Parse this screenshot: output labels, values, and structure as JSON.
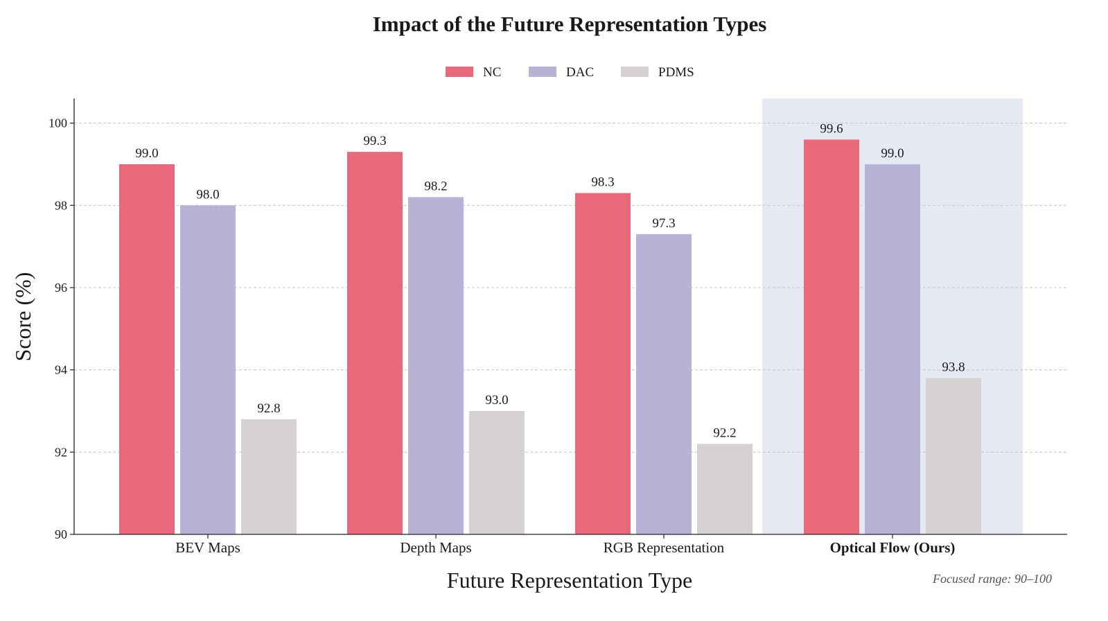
{
  "chart_data": {
    "type": "bar",
    "title": "Impact of the Future Representation Types",
    "xlabel": "Future Representation Type",
    "ylabel": "Score (%)",
    "ylim": [
      90,
      100.6
    ],
    "yticks": [
      90,
      92,
      94,
      96,
      98,
      100
    ],
    "grid": true,
    "legend_placement": "top-center",
    "categories": [
      "BEV Maps",
      "Depth Maps",
      "RGB Representation",
      "Optical Flow (Ours)"
    ],
    "highlighted_category": "Optical Flow (Ours)",
    "series": [
      {
        "name": "NC",
        "color": "#e8697b",
        "values": [
          99.0,
          99.3,
          98.3,
          99.6
        ],
        "labels": [
          "99.0",
          "99.3",
          "98.3",
          "99.6"
        ]
      },
      {
        "name": "DAC",
        "color": "#b6b3d7",
        "values": [
          98.0,
          98.2,
          97.3,
          99.0
        ],
        "labels": [
          "98.0",
          "98.2",
          "97.3",
          "99.0"
        ]
      },
      {
        "name": "PDMS",
        "color": "#d5d2d1",
        "values": [
          92.8,
          93.0,
          92.2,
          93.8
        ],
        "labels": [
          "92.8",
          "93.0",
          "92.2",
          "93.8"
        ]
      }
    ],
    "highlight_color": "#e8eaf3",
    "annotation": "Focused range: 90–100"
  }
}
